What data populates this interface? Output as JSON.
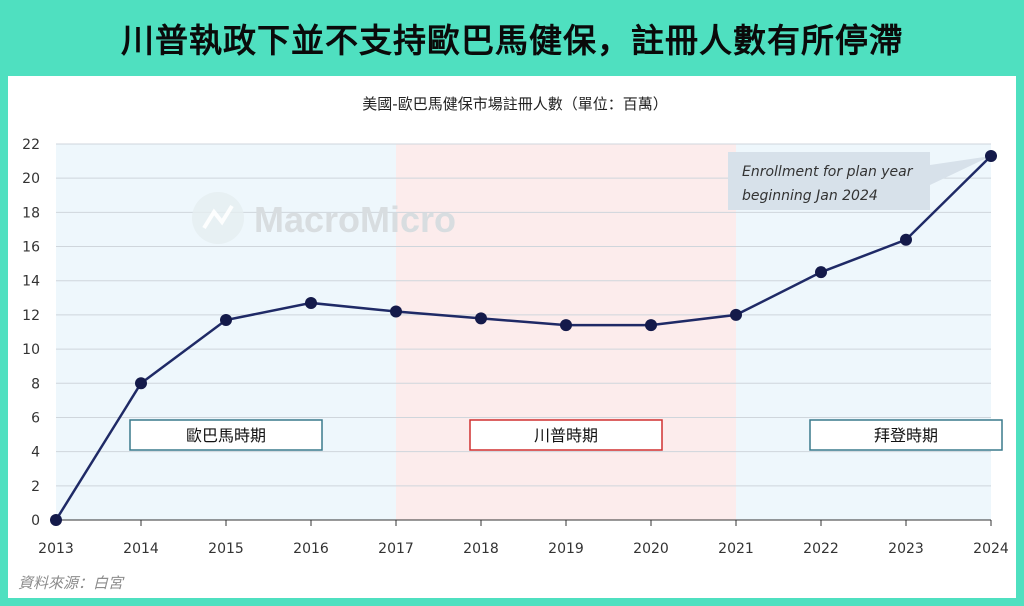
{
  "headline": "川普執政下並不支持歐巴馬健保，註冊人數有所停滯",
  "source": "資料來源：白宮",
  "watermark": "MacroMicro",
  "colors": {
    "frame": "#4fe0c0",
    "line": "#1f2a66",
    "point": "#141a4a",
    "obama_band": "#eef7fc",
    "trump_band": "#fcecec",
    "biden_band": "#eef7fc",
    "obama_box": "#3a7a8c",
    "trump_box": "#d03030",
    "biden_box": "#3a7a8c"
  },
  "chart_data": {
    "type": "line",
    "title": "美國-歐巴馬健保市場註冊人數（單位：百萬）",
    "xlabel": "",
    "ylabel": "",
    "categories": [
      "2013",
      "2014",
      "2015",
      "2016",
      "2017",
      "2018",
      "2019",
      "2020",
      "2021",
      "2022",
      "2023",
      "2024"
    ],
    "series": [
      {
        "values": [
          0,
          8.0,
          11.7,
          12.7,
          12.2,
          11.8,
          11.4,
          11.4,
          12.0,
          14.5,
          16.4,
          21.3
        ]
      }
    ],
    "ylim": [
      0,
      22
    ],
    "yticks": [
      0,
      2,
      4,
      6,
      8,
      10,
      12,
      14,
      16,
      18,
      20,
      22
    ],
    "grid": true,
    "periods": [
      {
        "label": "歐巴馬時期",
        "from": "2013",
        "to": "2017",
        "label_center": 2015
      },
      {
        "label": "川普時期",
        "from": "2017",
        "to": "2021",
        "label_center": 2019
      },
      {
        "label": "拜登時期",
        "from": "2021",
        "to": "2024",
        "label_center": 2023
      }
    ],
    "annotation": {
      "lines": [
        "Enrollment for plan year",
        "beginning Jan 2024"
      ],
      "target": "2024"
    }
  }
}
